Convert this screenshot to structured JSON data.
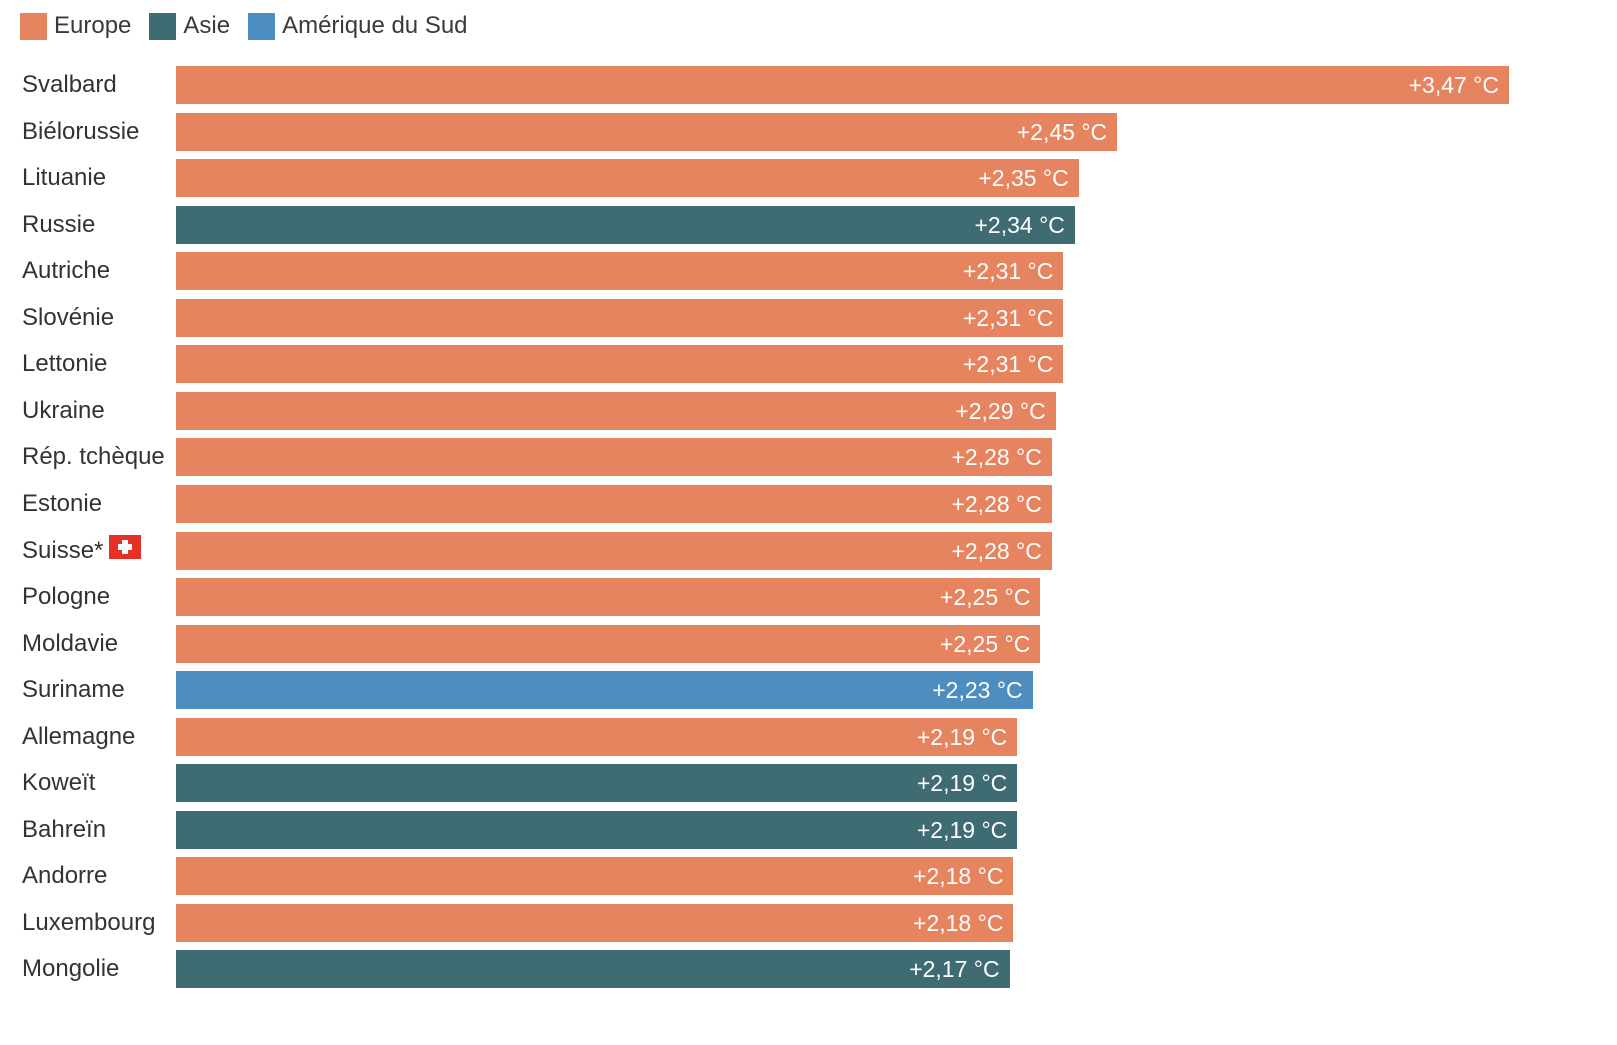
{
  "chart_data": {
    "type": "bar",
    "orientation": "horizontal",
    "legend": [
      {
        "name": "Europe",
        "color": "#e5845f"
      },
      {
        "name": "Asie",
        "color": "#3f6b72"
      },
      {
        "name": "Amérique du Sud",
        "color": "#4e8dbf"
      }
    ],
    "legend_placement": "top-left",
    "grid": false,
    "xlim": [
      0,
      3.47
    ],
    "bars": [
      {
        "category": "Svalbard",
        "value": 3.47,
        "label": "+3,47 °C",
        "group": "Europe"
      },
      {
        "category": "Biélorussie",
        "value": 2.45,
        "label": "+2,45 °C",
        "group": "Europe"
      },
      {
        "category": "Lituanie",
        "value": 2.35,
        "label": "+2,35 °C",
        "group": "Europe"
      },
      {
        "category": "Russie",
        "value": 2.34,
        "label": "+2,34 °C",
        "group": "Asie"
      },
      {
        "category": "Autriche",
        "value": 2.31,
        "label": "+2,31 °C",
        "group": "Europe"
      },
      {
        "category": "Slovénie",
        "value": 2.31,
        "label": "+2,31 °C",
        "group": "Europe"
      },
      {
        "category": "Lettonie",
        "value": 2.31,
        "label": "+2,31 °C",
        "group": "Europe"
      },
      {
        "category": "Ukraine",
        "value": 2.29,
        "label": "+2,29 °C",
        "group": "Europe"
      },
      {
        "category": "Rép. tchèque",
        "value": 2.28,
        "label": "+2,28 °C",
        "group": "Europe"
      },
      {
        "category": "Estonie",
        "value": 2.28,
        "label": "+2,28 °C",
        "group": "Europe"
      },
      {
        "category": "Suisse*",
        "value": 2.28,
        "label": "+2,28 °C",
        "group": "Europe",
        "flag": "swiss-flag-icon"
      },
      {
        "category": "Pologne",
        "value": 2.25,
        "label": "+2,25 °C",
        "group": "Europe"
      },
      {
        "category": "Moldavie",
        "value": 2.25,
        "label": "+2,25 °C",
        "group": "Europe"
      },
      {
        "category": "Suriname",
        "value": 2.23,
        "label": "+2,23 °C",
        "group": "Amérique du Sud"
      },
      {
        "category": "Allemagne",
        "value": 2.19,
        "label": "+2,19 °C",
        "group": "Europe"
      },
      {
        "category": "Koweït",
        "value": 2.19,
        "label": "+2,19 °C",
        "group": "Asie"
      },
      {
        "category": "Bahreïn",
        "value": 2.19,
        "label": "+2,19 °C",
        "group": "Asie"
      },
      {
        "category": "Andorre",
        "value": 2.18,
        "label": "+2,18 °C",
        "group": "Europe"
      },
      {
        "category": "Luxembourg",
        "value": 2.18,
        "label": "+2,18 °C",
        "group": "Europe"
      },
      {
        "category": "Mongolie",
        "value": 2.17,
        "label": "+2,17 °C",
        "group": "Asie"
      }
    ]
  }
}
